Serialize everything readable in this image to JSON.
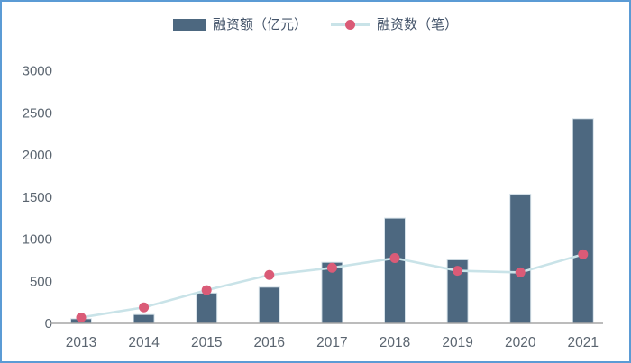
{
  "frame": {
    "border_color": "#5b9bd5",
    "background": "#ffffff"
  },
  "legend": {
    "bar_label": "融资额（亿元）",
    "line_label": "融资数（笔）"
  },
  "chart_data": {
    "type": "bar+line",
    "title": "",
    "xlabel": "",
    "ylabel": "",
    "categories": [
      "2013",
      "2014",
      "2015",
      "2016",
      "2017",
      "2018",
      "2019",
      "2020",
      "2021"
    ],
    "series": [
      {
        "name": "融资额（亿元）",
        "type": "bar",
        "color": "#4d6880",
        "bar_border_color": "#d7e3ea",
        "values": [
          55,
          105,
          360,
          430,
          725,
          1250,
          755,
          1535,
          2430
        ]
      },
      {
        "name": "融资数（笔）",
        "type": "line",
        "line_color": "#c9e3e8",
        "marker_color": "#da5b77",
        "values": [
          70,
          190,
          395,
          575,
          660,
          775,
          625,
          605,
          820
        ]
      }
    ],
    "ylim": [
      0,
      3000
    ],
    "y_ticks": [
      0,
      500,
      1000,
      1500,
      2000,
      2500,
      3000
    ],
    "grid": false,
    "legend_position": "top",
    "axis_line_color": "#a6a6a6",
    "tick_label_color": "#5b6570"
  }
}
